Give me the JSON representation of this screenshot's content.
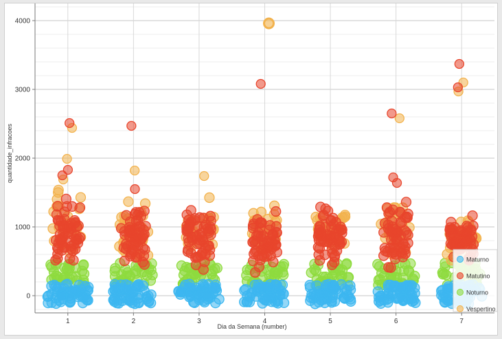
{
  "chart_data": {
    "type": "scatter",
    "title": "",
    "xlabel": "Dia da Semana (number)",
    "ylabel": "quantidade_infracoes",
    "xlim": [
      0.5,
      7.5
    ],
    "ylim": [
      -250,
      4250
    ],
    "x_ticks": [
      1,
      2,
      3,
      4,
      5,
      6,
      7
    ],
    "y_ticks": [
      0,
      1000,
      2000,
      3000,
      4000
    ],
    "grid": true,
    "legend_position": "bottom-right",
    "series": [
      {
        "name": "Maturno",
        "color": "#3cb7f0",
        "per_day": [
          {
            "day": 1,
            "range": [
              -120,
              170
            ]
          },
          {
            "day": 2,
            "range": [
              -120,
              170
            ]
          },
          {
            "day": 3,
            "range": [
              -120,
              170
            ]
          },
          {
            "day": 4,
            "range": [
              -120,
              170
            ]
          },
          {
            "day": 5,
            "range": [
              -120,
              170
            ]
          },
          {
            "day": 6,
            "range": [
              -120,
              170
            ]
          },
          {
            "day": 7,
            "range": [
              -120,
              170
            ]
          }
        ],
        "points": []
      },
      {
        "name": "Matutino",
        "color": "#e8452c",
        "per_day": [
          {
            "day": 1,
            "range": [
              300,
              1550
            ]
          },
          {
            "day": 2,
            "range": [
              200,
              1450
            ]
          },
          {
            "day": 3,
            "range": [
              300,
              1420
            ]
          },
          {
            "day": 4,
            "range": [
              200,
              1400
            ]
          },
          {
            "day": 5,
            "range": [
              300,
              1440
            ]
          },
          {
            "day": 6,
            "range": [
              200,
              1500
            ]
          },
          {
            "day": 7,
            "range": [
              400,
              1220
            ]
          }
        ],
        "points": [
          {
            "x": 1,
            "y": 2510
          },
          {
            "x": 1,
            "y": 1830
          },
          {
            "x": 1,
            "y": 1750
          },
          {
            "x": 2,
            "y": 2470
          },
          {
            "x": 2,
            "y": 1550
          },
          {
            "x": 4,
            "y": 3080
          },
          {
            "x": 6,
            "y": 2650
          },
          {
            "x": 6,
            "y": 1720
          },
          {
            "x": 6,
            "y": 1640
          },
          {
            "x": 7,
            "y": 3370
          },
          {
            "x": 7,
            "y": 3030
          }
        ]
      },
      {
        "name": "Noturno",
        "color": "#8edb3e",
        "per_day": [
          {
            "day": 1,
            "range": [
              150,
              480
            ]
          },
          {
            "day": 2,
            "range": [
              150,
              480
            ]
          },
          {
            "day": 3,
            "range": [
              150,
              480
            ]
          },
          {
            "day": 4,
            "range": [
              150,
              480
            ]
          },
          {
            "day": 5,
            "range": [
              150,
              480
            ]
          },
          {
            "day": 6,
            "range": [
              150,
              480
            ]
          },
          {
            "day": 7,
            "range": [
              150,
              480
            ]
          }
        ],
        "points": []
      },
      {
        "name": "Vespertino",
        "color": "#f2b24d",
        "per_day": [
          {
            "day": 1,
            "range": [
              400,
              1650
            ]
          },
          {
            "day": 2,
            "range": [
              400,
              1500
            ]
          },
          {
            "day": 3,
            "range": [
              400,
              1500
            ]
          },
          {
            "day": 4,
            "range": [
              400,
              1400
            ]
          },
          {
            "day": 5,
            "range": [
              400,
              1500
            ]
          },
          {
            "day": 6,
            "range": [
              400,
              1500
            ]
          },
          {
            "day": 7,
            "range": [
              400,
              1250
            ]
          }
        ],
        "points": [
          {
            "x": 1,
            "y": 2440
          },
          {
            "x": 1,
            "y": 1990
          },
          {
            "x": 1,
            "y": 1690
          },
          {
            "x": 2,
            "y": 1820
          },
          {
            "x": 3,
            "y": 1740
          },
          {
            "x": 4,
            "y": 3960
          },
          {
            "x": 6,
            "y": 2580
          },
          {
            "x": 7,
            "y": 3100
          },
          {
            "x": 7,
            "y": 2970
          }
        ]
      }
    ]
  }
}
